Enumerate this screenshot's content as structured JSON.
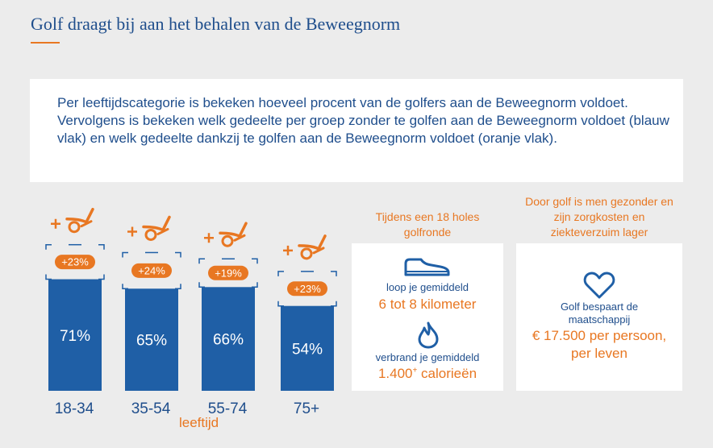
{
  "title": "Golf draagt bij aan het behalen van de Beweegnorm",
  "intro": "Per leeftijdscategorie is bekeken hoeveel procent van de golfers aan de Beweegnorm voldoet. Vervolgens is bekeken welk gedeelte per groep zonder te golfen aan de Beweegnorm voldoet (blauw vlak) en welk gedeelte dankzij te golfen aan de Beweegnorm voldoet (oranje vlak).",
  "chart_data": {
    "type": "bar",
    "categories": [
      "18-34",
      "35-54",
      "55-74",
      "75+"
    ],
    "series": [
      {
        "values": [
          71,
          65,
          66,
          54
        ],
        "labels": [
          "71%",
          "65%",
          "66%",
          "54%"
        ]
      },
      {
        "values": [
          23,
          24,
          19,
          23
        ],
        "labels": [
          "+23%",
          "+24%",
          "+19%",
          "+23%"
        ]
      }
    ],
    "xlabel": "leeftijd",
    "colors": {
      "base": "#1f5fa6",
      "golf": "#e87722"
    }
  },
  "round_card": {
    "heading": "Tijdens een 18 holes golfronde",
    "walk_label": "loop je gemiddeld",
    "walk_value": "6 tot 8 kilometer",
    "burn_label": "verbrand je gemiddeld",
    "burn_value": "1.400",
    "burn_sup": "+",
    "burn_unit": " calorieën",
    "icons": [
      "shoe-icon",
      "flame-icon"
    ]
  },
  "health_card": {
    "heading": "Door golf is men gezonder en zijn zorgkosten en ziekteverzuim lager",
    "text": "Golf bespaart de maatschappij",
    "value": "€ 17.500 per persoon, per leven",
    "icon": "heart-icon"
  }
}
